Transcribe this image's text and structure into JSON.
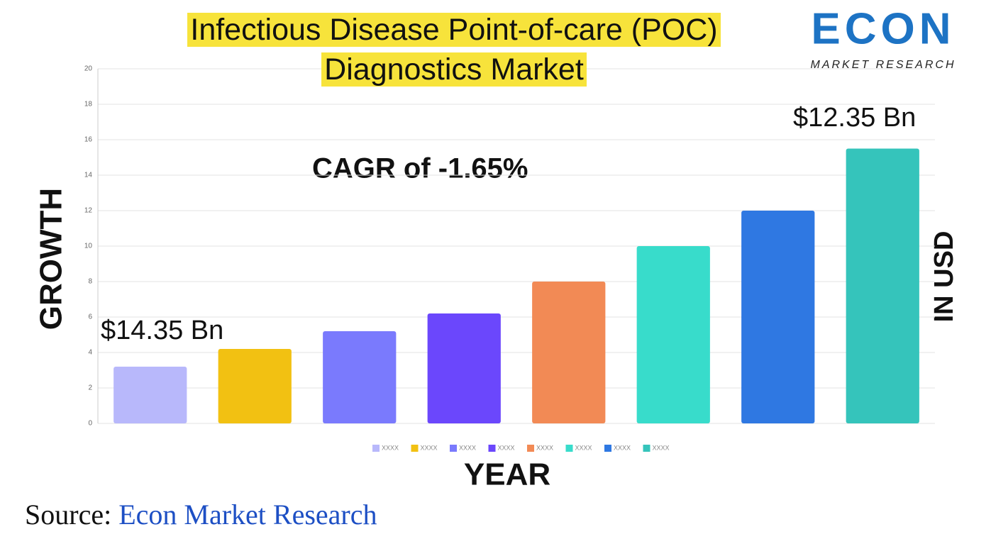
{
  "chart_data": {
    "type": "bar",
    "title": "Infectious Disease Point-of-care (POC) Diagnostics Market",
    "x_label": "YEAR",
    "y_label": "GROWTH",
    "y2_label": "IN USD",
    "annotations": [
      "$14.35 Bn",
      "$12.35 Bn",
      "CAGR of -1.65%"
    ],
    "series": [
      {
        "name": "XXXX",
        "color": "#b8b8fb",
        "values": [
          3.2
        ]
      },
      {
        "name": "XXXX",
        "color": "#f2c112",
        "values": [
          4.2
        ]
      },
      {
        "name": "XXXX",
        "color": "#7a7afd",
        "values": [
          5.2
        ]
      },
      {
        "name": "XXXX",
        "color": "#6b47fc",
        "values": [
          6.2
        ]
      },
      {
        "name": "XXXX",
        "color": "#f28a55",
        "values": [
          8
        ]
      },
      {
        "name": "XXXX",
        "color": "#38dccb",
        "values": [
          10
        ]
      },
      {
        "name": "XXXX",
        "color": "#2f78e2",
        "values": [
          12
        ]
      },
      {
        "name": "XXXX",
        "color": "#35c4bb",
        "values": [
          15.5
        ]
      }
    ],
    "ylim": [
      0,
      20
    ],
    "yticks": [
      0,
      2,
      4,
      6,
      8,
      10,
      12,
      14,
      16,
      18,
      20
    ],
    "grid": true
  },
  "logo": {
    "name": "ECON",
    "tagline": "MARKET RESEARCH"
  },
  "source": {
    "label": "Source:",
    "text": "Econ Market Research"
  }
}
